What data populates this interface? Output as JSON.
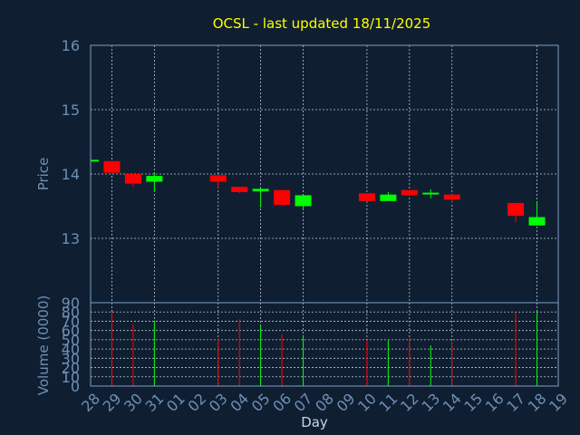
{
  "colors": {
    "background": "#0f1f31",
    "frame": "#7f9fc2",
    "grid": "#b7c7d9",
    "label": "#6f8fb6",
    "title": "#ffff00",
    "up": "#00ff00",
    "down": "#ff0000"
  },
  "chart_data": [
    {
      "type": "candlestick",
      "title": "OCSL - last updated 18/11/2025",
      "xlabel": "",
      "ylabel": "Price",
      "ylim": [
        12.0,
        16.0
      ],
      "yticks": [
        13,
        14,
        15,
        16
      ],
      "grid": true,
      "x_index_range": [
        0,
        22
      ],
      "vertical_grid_indices": [
        1,
        3,
        6,
        8,
        10,
        13,
        15,
        17,
        21
      ],
      "candles": [
        {
          "date": "28",
          "x": 0,
          "open": 14.2,
          "close": 14.22,
          "high": 14.22,
          "low": 14.2
        },
        {
          "date": "29",
          "x": 1,
          "open": 14.2,
          "close": 14.02,
          "high": 14.2,
          "low": 14.0
        },
        {
          "date": "30",
          "x": 2,
          "open": 14.0,
          "close": 13.85,
          "high": 14.0,
          "low": 13.8
        },
        {
          "date": "31",
          "x": 3,
          "open": 13.88,
          "close": 13.97,
          "high": 14.02,
          "low": 13.72
        },
        {
          "date": "03",
          "x": 6,
          "open": 13.98,
          "close": 13.88,
          "high": 13.98,
          "low": 13.78
        },
        {
          "date": "04",
          "x": 7,
          "open": 13.8,
          "close": 13.72,
          "high": 13.8,
          "low": 13.7
        },
        {
          "date": "05",
          "x": 8,
          "open": 13.73,
          "close": 13.77,
          "high": 13.78,
          "low": 13.48
        },
        {
          "date": "06",
          "x": 9,
          "open": 13.75,
          "close": 13.52,
          "high": 13.75,
          "low": 13.5
        },
        {
          "date": "07",
          "x": 10,
          "open": 13.5,
          "close": 13.67,
          "high": 13.67,
          "low": 13.45
        },
        {
          "date": "10",
          "x": 13,
          "open": 13.7,
          "close": 13.58,
          "high": 13.7,
          "low": 13.57
        },
        {
          "date": "11",
          "x": 14,
          "open": 13.58,
          "close": 13.68,
          "high": 13.72,
          "low": 13.58
        },
        {
          "date": "12",
          "x": 15,
          "open": 13.75,
          "close": 13.67,
          "high": 13.75,
          "low": 13.67
        },
        {
          "date": "13",
          "x": 16,
          "open": 13.69,
          "close": 13.71,
          "high": 13.76,
          "low": 13.62
        },
        {
          "date": "14",
          "x": 17,
          "open": 13.68,
          "close": 13.6,
          "high": 13.68,
          "low": 13.55
        },
        {
          "date": "17",
          "x": 20,
          "open": 13.55,
          "close": 13.35,
          "high": 13.55,
          "low": 13.25
        },
        {
          "date": "18",
          "x": 21,
          "open": 13.2,
          "close": 13.33,
          "high": 13.57,
          "low": 13.2
        }
      ]
    },
    {
      "type": "bar",
      "title": "",
      "xlabel": "Day",
      "ylabel": "Volume (0000)",
      "ylim": [
        0,
        90
      ],
      "yticks": [
        0,
        10,
        20,
        30,
        40,
        50,
        60,
        70,
        80,
        90
      ],
      "grid": true,
      "categories": [
        "28",
        "29",
        "30",
        "31",
        "01",
        "02",
        "03",
        "04",
        "05",
        "06",
        "07",
        "08",
        "09",
        "10",
        "11",
        "12",
        "13",
        "14",
        "15",
        "16",
        "17",
        "18",
        "19"
      ],
      "volumes": [
        {
          "date": "28",
          "x": 0,
          "value": 0,
          "color": "down"
        },
        {
          "date": "29",
          "x": 1,
          "value": 80,
          "color": "down"
        },
        {
          "date": "30",
          "x": 2,
          "value": 67,
          "color": "down"
        },
        {
          "date": "31",
          "x": 3,
          "value": 70,
          "color": "up"
        },
        {
          "date": "03",
          "x": 6,
          "value": 51,
          "color": "down"
        },
        {
          "date": "04",
          "x": 7,
          "value": 72,
          "color": "down"
        },
        {
          "date": "05",
          "x": 8,
          "value": 65,
          "color": "up"
        },
        {
          "date": "06",
          "x": 9,
          "value": 56,
          "color": "down"
        },
        {
          "date": "07",
          "x": 10,
          "value": 55,
          "color": "up"
        },
        {
          "date": "10",
          "x": 13,
          "value": 50,
          "color": "down"
        },
        {
          "date": "11",
          "x": 14,
          "value": 50,
          "color": "up"
        },
        {
          "date": "12",
          "x": 15,
          "value": 52,
          "color": "down"
        },
        {
          "date": "13",
          "x": 16,
          "value": 44,
          "color": "up"
        },
        {
          "date": "14",
          "x": 17,
          "value": 48,
          "color": "down"
        },
        {
          "date": "17",
          "x": 20,
          "value": 79,
          "color": "down"
        },
        {
          "date": "18",
          "x": 21,
          "value": 80,
          "color": "up"
        }
      ]
    }
  ]
}
